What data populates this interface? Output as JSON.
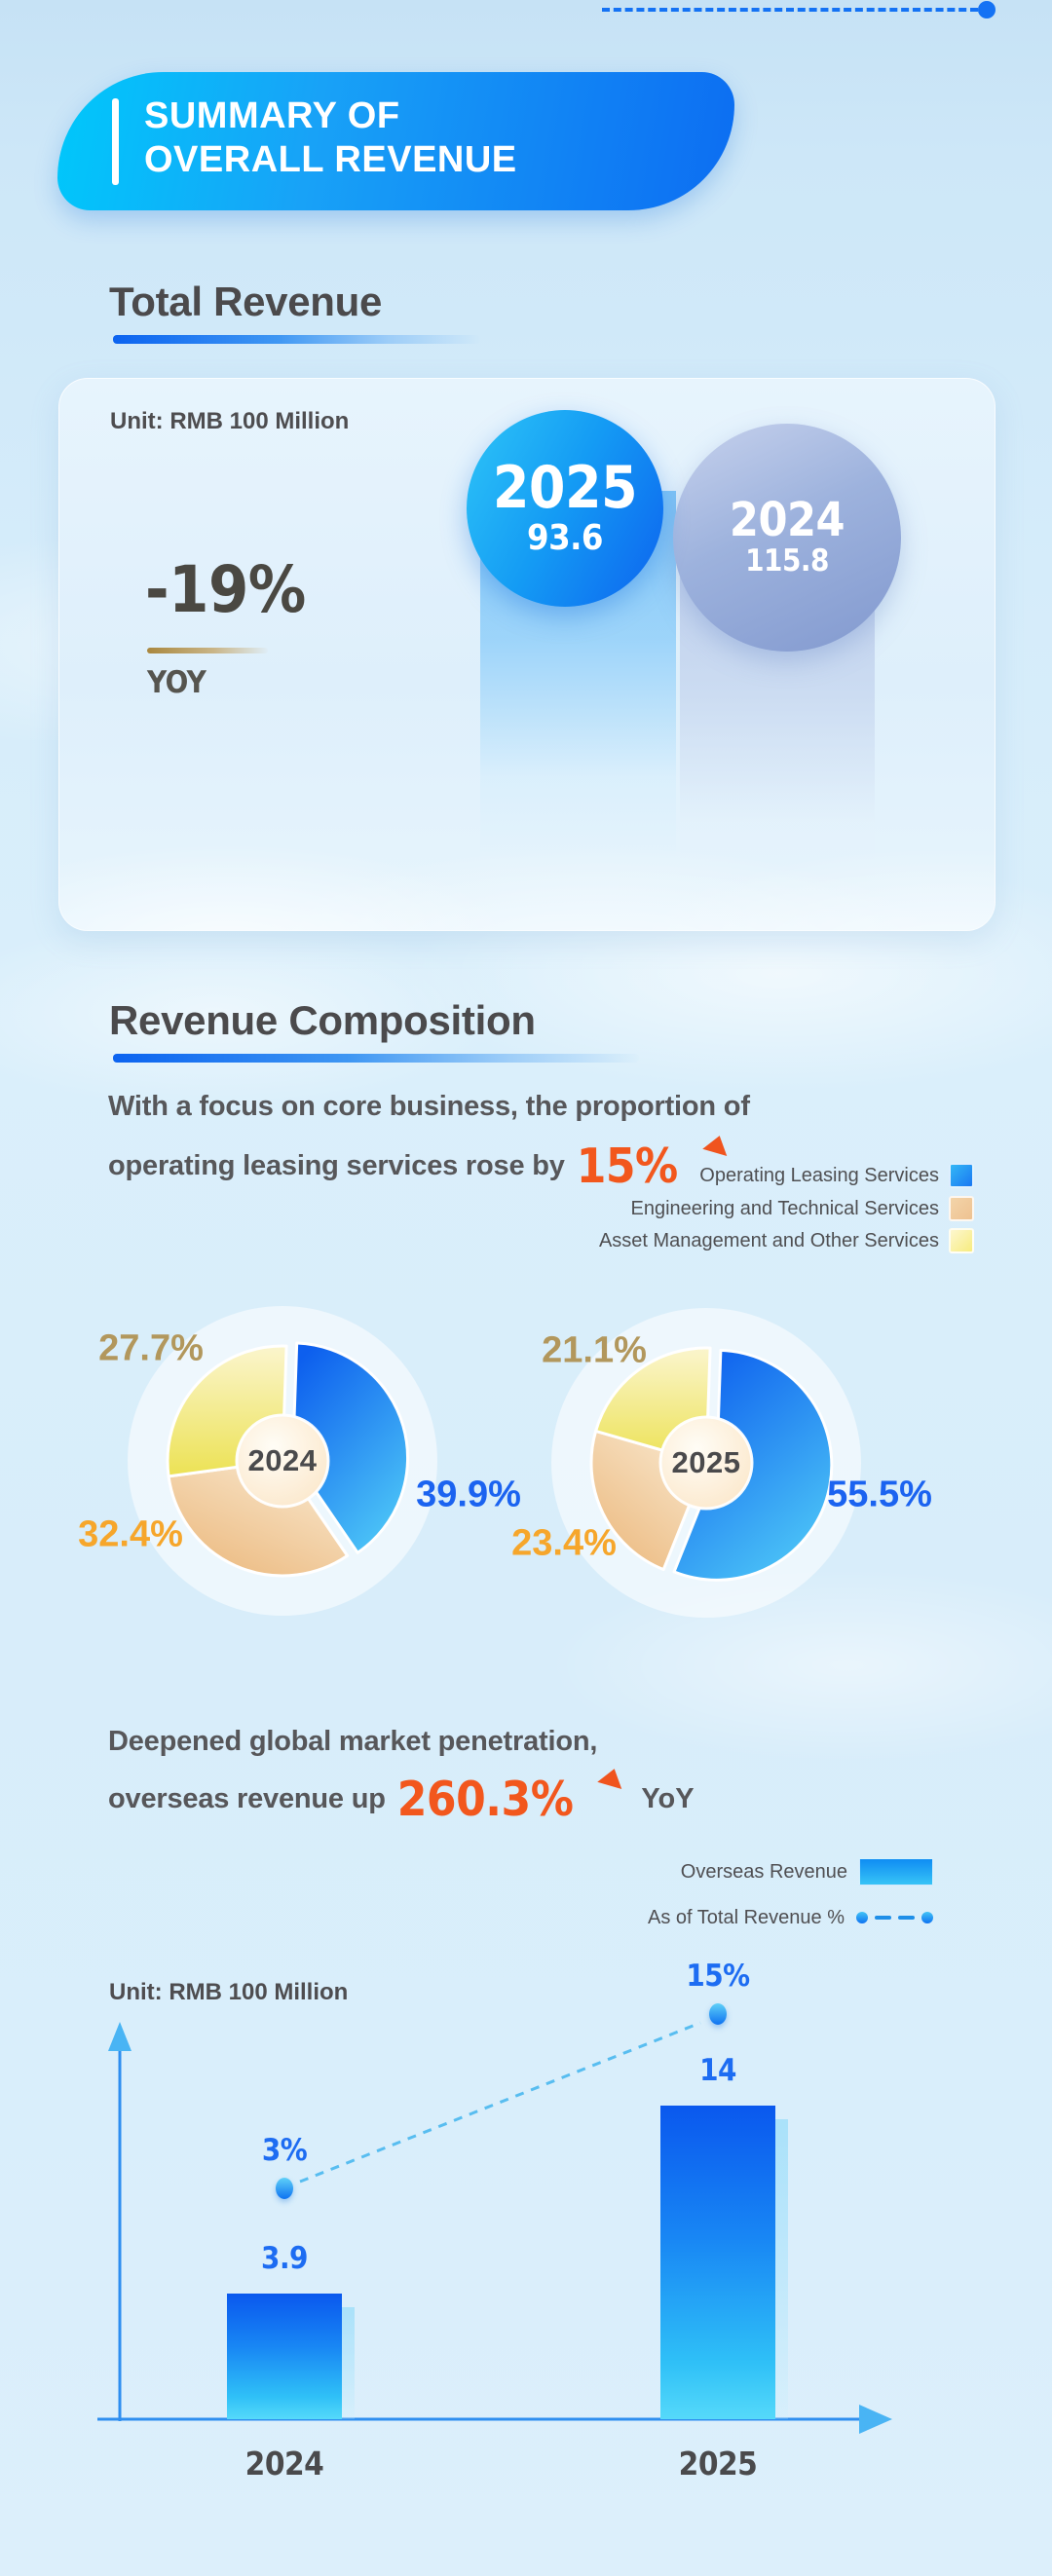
{
  "header": {
    "title_line1": "SUMMARY OF",
    "title_line2": "OVERALL REVENUE"
  },
  "total_revenue": {
    "section_title": "Total Revenue",
    "unit_label": "Unit: RMB 100 Million",
    "yoy_change": "-19%",
    "yoy_label": "YOY",
    "bubbles": [
      {
        "year": "2025",
        "value": "93.6"
      },
      {
        "year": "2024",
        "value": "115.8"
      }
    ]
  },
  "revenue_composition": {
    "section_title": "Revenue Composition",
    "intro_line1": "With a focus on core business, the proportion of",
    "intro_line2": "operating leasing services rose by",
    "highlight": "15%",
    "legend": [
      {
        "label": "Operating Leasing Services",
        "color": "#1a78f2"
      },
      {
        "label": "Engineering and Technical Services",
        "color": "#eec291"
      },
      {
        "label": "Asset Management and Other Services",
        "color": "#f7ec7f"
      }
    ]
  },
  "overseas": {
    "intro_line1": "Deepened global market penetration,",
    "intro_line2": "overseas revenue up",
    "highlight": "260.3%",
    "suffix": "YoY",
    "unit_label": "Unit: RMB 100 Million",
    "legend_bar_label": "Overseas Revenue",
    "legend_line_label": "As of Total Revenue %"
  },
  "palette": {
    "accent_blue": "#0d66f0",
    "cyan": "#3ec9f7",
    "orange_highlight": "#f2571d",
    "gold_label": "#b2975c",
    "orange_label": "#f6a62b",
    "blue_label": "#1b63f0",
    "slice_gradients": {
      "operating": [
        "#0d5fee",
        "#4fc9f7"
      ],
      "engineering": [
        "#ecba80",
        "#f9e9d0"
      ],
      "asset": [
        "#ece254",
        "#fbf5cd"
      ]
    }
  },
  "chart_data": [
    {
      "type": "bar",
      "title": "Total Revenue",
      "unit": "RMB 100 Million",
      "categories": [
        "2025",
        "2024"
      ],
      "values": [
        93.6,
        115.8
      ],
      "annotation": "-19% YOY"
    },
    {
      "type": "pie",
      "title": "2024",
      "slices": [
        {
          "label": "Operating Leasing Services",
          "value": 39.9
        },
        {
          "label": "Engineering and Technical Services",
          "value": 32.4
        },
        {
          "label": "Asset Management and Other Services",
          "value": 27.7
        }
      ]
    },
    {
      "type": "pie",
      "title": "2025",
      "slices": [
        {
          "label": "Operating Leasing Services",
          "value": 55.5
        },
        {
          "label": "Engineering and Technical Services",
          "value": 23.4
        },
        {
          "label": "Asset Management and Other Services",
          "value": 21.1
        }
      ]
    },
    {
      "type": "bar",
      "title": "Overseas Revenue",
      "unit": "RMB 100 Million",
      "categories": [
        "2024",
        "2025"
      ],
      "series": [
        {
          "name": "Overseas Revenue",
          "values": [
            3.9,
            14
          ]
        },
        {
          "name": "As of Total Revenue %",
          "values": [
            3,
            15
          ],
          "style": "dashed-line"
        }
      ]
    }
  ]
}
